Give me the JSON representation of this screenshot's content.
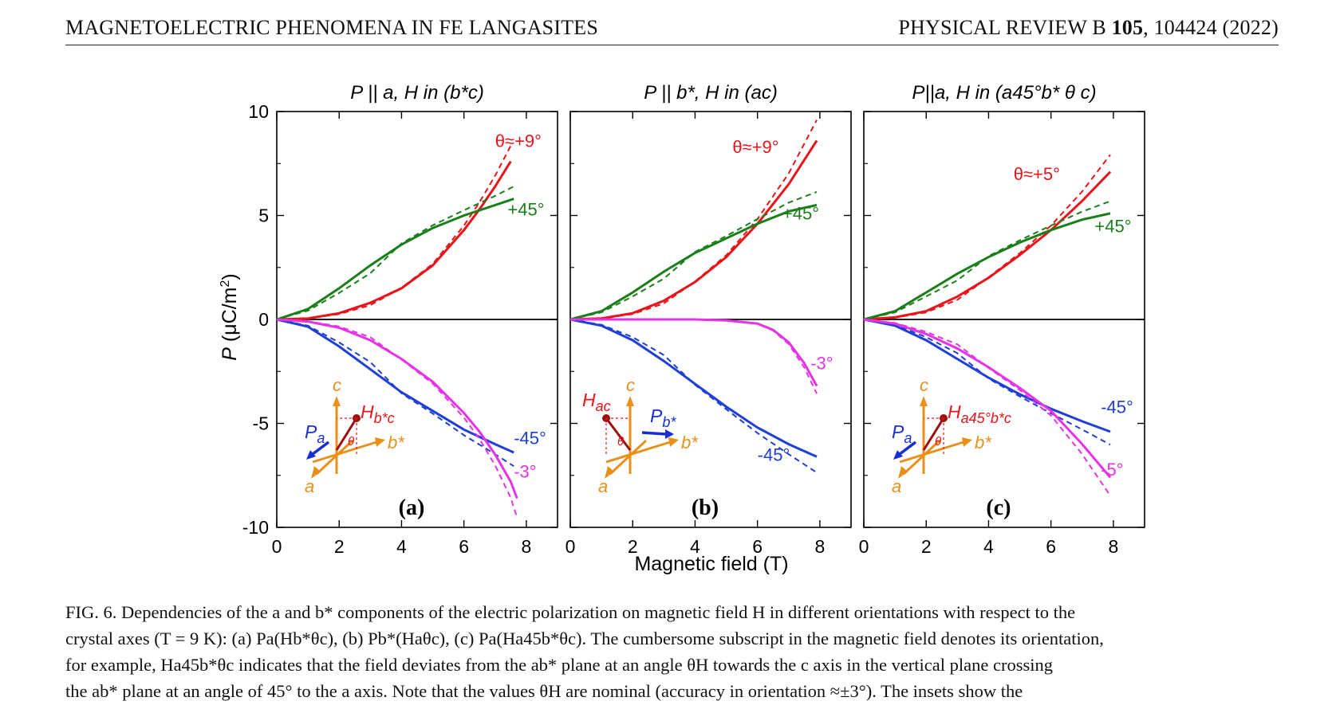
{
  "header": {
    "left": "MAGNETOELECTRIC PHENOMENA IN FE LANGASITES",
    "right_journal": "PHYSICAL REVIEW B ",
    "right_volume": "105",
    "right_rest": ", 104424 (2022)"
  },
  "figure": {
    "xlabel": "Magnetic field (T)",
    "ylabel_var": "P",
    "ylabel_unit": " (μC/m",
    "ylabel_exp": "2",
    "ylabel_close": ")",
    "yticks": [
      "10",
      "5",
      "0",
      "-5",
      "-10"
    ],
    "xticks": [
      "0",
      "2",
      "4",
      "6",
      "8"
    ]
  },
  "chart_data": [
    {
      "type": "line",
      "panel": "(a)",
      "title": "P || a, H in (b*c)",
      "xlim": [
        0,
        9
      ],
      "ylim": [
        -10,
        10
      ],
      "xlabel": "Magnetic field (T)",
      "ylabel": "P (μC/m2)",
      "labels": [
        "θ≈+9°",
        "+45°",
        "-45°",
        "-3°"
      ],
      "series": [
        {
          "name": "θ≈+9°",
          "color": "#e8141a",
          "x": [
            0,
            1,
            2,
            3,
            4,
            5,
            6,
            6.5,
            7,
            7.5
          ],
          "y": [
            0,
            0.05,
            0.3,
            0.8,
            1.5,
            2.6,
            4.3,
            5.3,
            6.4,
            7.6
          ]
        },
        {
          "name": "+45°",
          "color": "#1a7f1a",
          "x": [
            0,
            1,
            2,
            3,
            4,
            5,
            6,
            7,
            7.6
          ],
          "y": [
            0,
            0.5,
            1.5,
            2.6,
            3.6,
            4.4,
            5.0,
            5.5,
            5.8
          ]
        },
        {
          "name": "-45°",
          "color": "#1f3fd6",
          "x": [
            0,
            1,
            2,
            3,
            4,
            5,
            6,
            7,
            7.6
          ],
          "y": [
            0,
            -0.35,
            -1.3,
            -2.4,
            -3.5,
            -4.4,
            -5.3,
            -6.0,
            -6.4
          ]
        },
        {
          "name": "-3°",
          "color": "#e633e6",
          "x": [
            0,
            1,
            2,
            3,
            4,
            5,
            6,
            6.5,
            7,
            7.5,
            7.7
          ],
          "y": [
            0,
            -0.1,
            -0.4,
            -1.0,
            -1.9,
            -3.0,
            -4.5,
            -5.4,
            -6.5,
            -7.8,
            -8.6
          ]
        }
      ]
    },
    {
      "type": "line",
      "panel": "(b)",
      "title": "P || b*, H in (ac)",
      "xlim": [
        0,
        9
      ],
      "ylim": [
        -10,
        10
      ],
      "xlabel": "Magnetic field (T)",
      "ylabel": "P (μC/m2)",
      "labels": [
        "θ≈+9°",
        "+45°",
        "-45°",
        "-3°"
      ],
      "series": [
        {
          "name": "θ≈+9°",
          "color": "#e8141a",
          "x": [
            0,
            1,
            2,
            3,
            4,
            5,
            6,
            7,
            7.9
          ],
          "y": [
            0,
            0.05,
            0.3,
            0.9,
            1.8,
            3.0,
            4.6,
            6.5,
            8.6
          ]
        },
        {
          "name": "+45°",
          "color": "#1a7f1a",
          "x": [
            0,
            1,
            2,
            3,
            4,
            5,
            6,
            7,
            7.9
          ],
          "y": [
            0,
            0.4,
            1.3,
            2.3,
            3.2,
            3.9,
            4.6,
            5.2,
            5.5
          ]
        },
        {
          "name": "-45°",
          "color": "#1f3fd6",
          "x": [
            0,
            1,
            2,
            3,
            4,
            5,
            6,
            7,
            7.9
          ],
          "y": [
            0,
            -0.3,
            -1.0,
            -2.0,
            -3.1,
            -4.2,
            -5.2,
            -6.0,
            -6.6
          ]
        },
        {
          "name": "-3°",
          "color": "#e633e6",
          "x": [
            0,
            1,
            2,
            3,
            4,
            5,
            6,
            6.5,
            7,
            7.5,
            7.9
          ],
          "y": [
            0,
            0,
            0,
            0,
            0,
            -0.05,
            -0.2,
            -0.5,
            -1.1,
            -2.1,
            -3.2
          ]
        }
      ]
    },
    {
      "type": "line",
      "panel": "(c)",
      "title": "P||a, H in (a45°b* θ c)",
      "xlim": [
        0,
        9
      ],
      "ylim": [
        -10,
        10
      ],
      "xlabel": "Magnetic field (T)",
      "ylabel": "P (μC/m2)",
      "labels": [
        "θ≈+5°",
        "+45°",
        "-45°",
        "-5°"
      ],
      "series": [
        {
          "name": "θ≈+5°",
          "color": "#e8141a",
          "x": [
            0,
            1,
            2,
            3,
            4,
            5,
            6,
            7,
            7.9
          ],
          "y": [
            0,
            0.1,
            0.4,
            1.1,
            2.0,
            3.1,
            4.3,
            5.7,
            7.1
          ]
        },
        {
          "name": "+45°",
          "color": "#1a7f1a",
          "x": [
            0,
            1,
            2,
            3,
            4,
            5,
            6,
            7,
            7.9
          ],
          "y": [
            0,
            0.4,
            1.3,
            2.2,
            3.0,
            3.7,
            4.3,
            4.8,
            5.1
          ]
        },
        {
          "name": "-45°",
          "color": "#1f3fd6",
          "x": [
            0,
            1,
            2,
            3,
            4,
            5,
            6,
            7,
            7.9
          ],
          "y": [
            0,
            -0.3,
            -1.0,
            -1.9,
            -2.8,
            -3.6,
            -4.3,
            -4.9,
            -5.4
          ]
        },
        {
          "name": "-5°",
          "color": "#e633e6",
          "x": [
            0,
            1,
            2,
            3,
            4,
            5,
            6,
            7,
            7.9
          ],
          "y": [
            0,
            -0.2,
            -0.7,
            -1.4,
            -2.3,
            -3.3,
            -4.4,
            -6.0,
            -7.6
          ]
        }
      ]
    }
  ],
  "insets": {
    "a": {
      "axis_c": "c",
      "axis_a": "a",
      "axis_b": "b*",
      "theta": "θ",
      "field": "H",
      "field_sub": "b*c",
      "pol": "P",
      "pol_sub": "a"
    },
    "b": {
      "axis_c": "c",
      "axis_a": "a",
      "axis_b": "b*",
      "theta": "θ",
      "field": "H",
      "field_sub": "ac",
      "pol": "P",
      "pol_sub": "b*"
    },
    "c": {
      "axis_c": "c",
      "axis_a": "a",
      "axis_b": "b*",
      "theta": "θ",
      "field": "H",
      "field_sub": "a45°b*c",
      "pol": "P",
      "pol_sub": "a"
    }
  },
  "caption": {
    "line1": "FIG. 6.  Dependencies of the a and b* components of the electric polarization on magnetic field H in different orientations with respect to the",
    "line2": "crystal axes (T = 9 K): (a) Pa(Hb*θc), (b) Pb*(Haθc), (c) Pa(Ha45b*θc). The cumbersome subscript in the magnetic field denotes its orientation,",
    "line3": "for example, Ha45b*θc indicates that the field deviates from the ab* plane at an angle θH towards the c axis in the vertical plane crossing",
    "line4": "the ab* plane at an angle of 45° to the a axis. Note that the values θH are nominal (accuracy in orientation ≈±3°). The insets show the"
  }
}
